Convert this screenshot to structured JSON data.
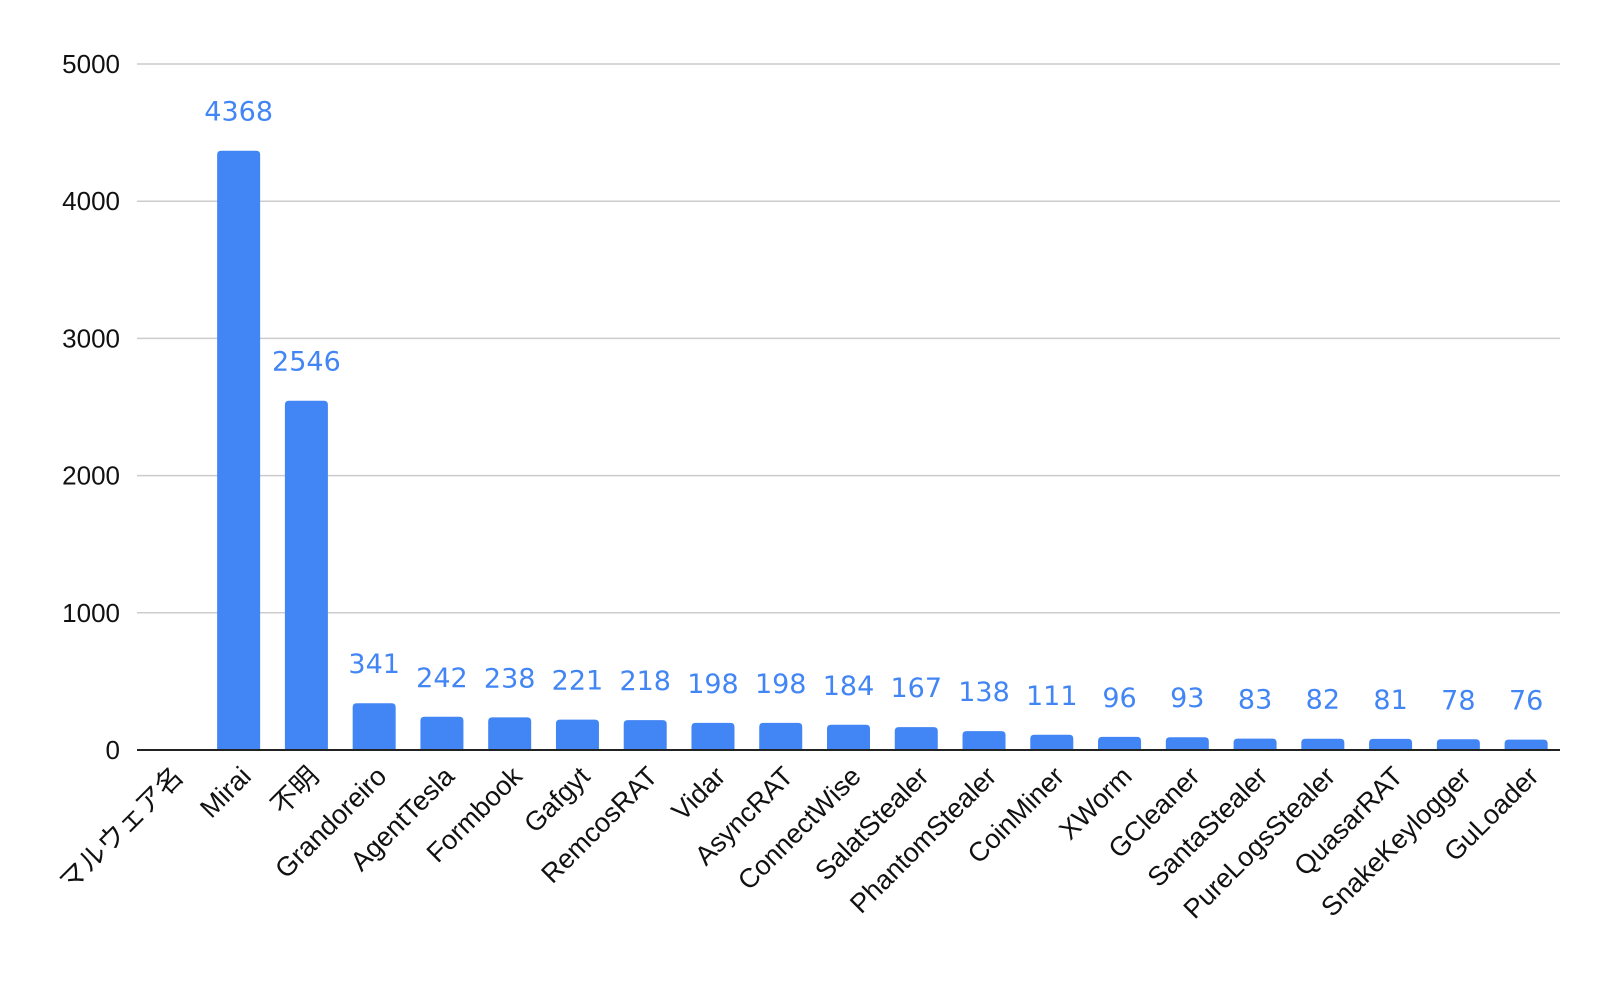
{
  "chart_data": {
    "type": "bar",
    "categories": [
      "マルウェア名",
      "Mirai",
      "不明",
      "Grandoreiro",
      "AgentTesla",
      "Formbook",
      "Gafgyt",
      "RemcosRAT",
      "Vidar",
      "AsyncRAT",
      "ConnectWise",
      "SalatStealer",
      "PhantomStealer",
      "CoinMiner",
      "XWorm",
      "GCleaner",
      "SantaStealer",
      "PureLogsStealer",
      "QuasarRAT",
      "SnakeKeylogger",
      "GuLoader"
    ],
    "values": [
      null,
      4368,
      2546,
      341,
      242,
      238,
      221,
      218,
      198,
      198,
      184,
      167,
      138,
      111,
      96,
      93,
      83,
      82,
      81,
      78,
      76
    ],
    "ylim": [
      0,
      5000
    ],
    "yticks": [
      0,
      1000,
      2000,
      3000,
      4000,
      5000
    ],
    "grid": true,
    "bar_color": "#4285f4",
    "label_color": "#4285f4"
  }
}
